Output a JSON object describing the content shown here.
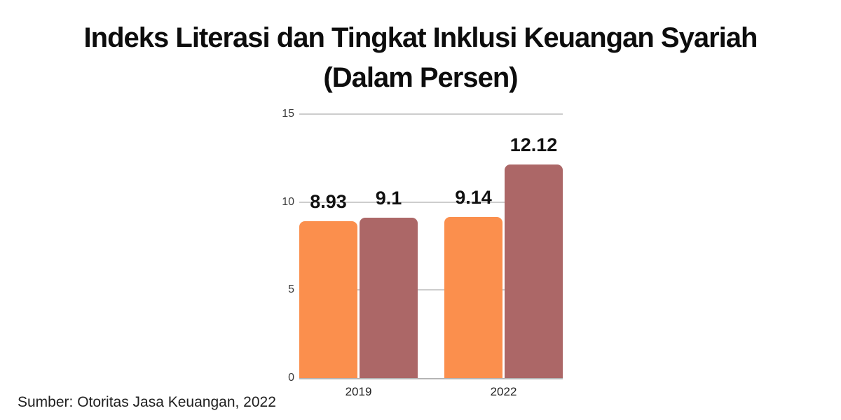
{
  "header": {
    "title_line1": "Indeks Literasi dan Tingkat Inklusi Keuangan Syariah",
    "title_line2": "(Dalam Persen)"
  },
  "footer": {
    "source_note": "Sumber: Otoritas Jasa Keuangan, 2022"
  },
  "chart_data": {
    "type": "bar",
    "title": "Indeks Literasi dan Tingkat Inklusi Keuangan Syariah",
    "subtitle": "(Dalam Persen)",
    "categories": [
      "2019",
      "2022"
    ],
    "series": [
      {
        "name": "orange-series",
        "color": "#FB8F4D",
        "values": [
          8.93,
          9.14
        ],
        "value_labels": [
          "8.93",
          "9.14"
        ]
      },
      {
        "name": "mauve-series",
        "color": "#AC6767",
        "values": [
          9.1,
          12.12
        ],
        "value_labels": [
          "9.1",
          "12.12"
        ]
      }
    ],
    "ylim": [
      0,
      15
    ],
    "yticks": [
      0,
      5,
      10,
      15
    ],
    "ytick_labels": [
      "0",
      "5",
      "10",
      "15"
    ],
    "grid": true,
    "legend": "none",
    "source": "Sumber: Otoritas Jasa Keuangan, 2022",
    "colors": {
      "gridline": "#cdcdcd",
      "baseline": "#b5b5b5",
      "tick_label": "#3b3b3b",
      "value_label": "#111111",
      "title": "#0d0d0d"
    }
  }
}
